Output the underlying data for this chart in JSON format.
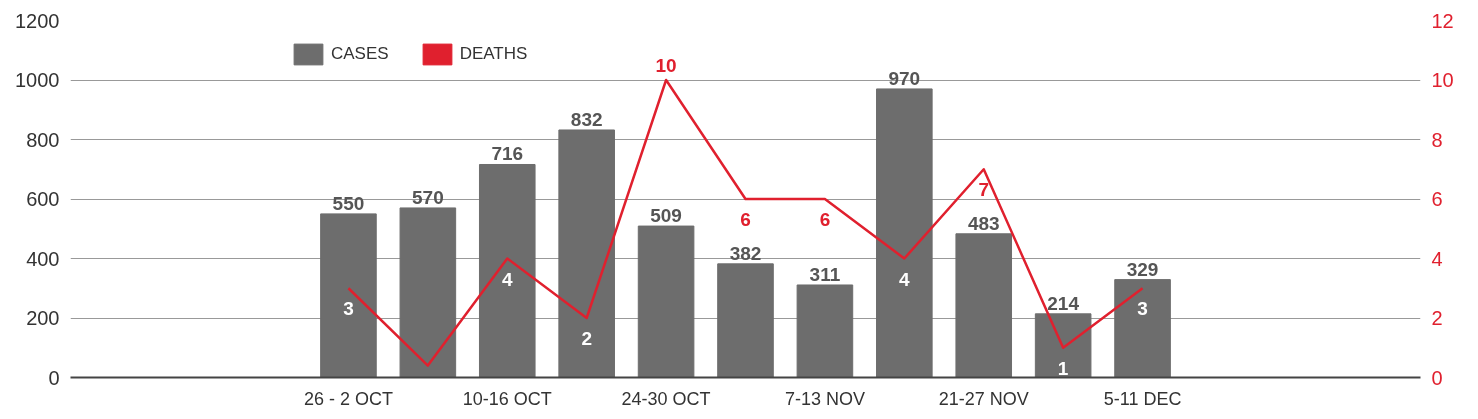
{
  "chart_data": {
    "type": "bar",
    "categories": [
      null,
      null,
      null,
      "26 - 2 OCT",
      null,
      "10-16 OCT",
      null,
      "24-30 OCT",
      null,
      "7-13 NOV",
      null,
      "21-27 NOV",
      null,
      "5-11 DEC",
      null,
      null,
      null
    ],
    "series": [
      {
        "name": "CASES",
        "color": "#6d6d6d",
        "values": [
          null,
          null,
          null,
          550,
          570,
          716,
          832,
          509,
          382,
          311,
          970,
          483,
          214,
          329,
          null,
          null,
          null
        ],
        "value_labels": [
          null,
          null,
          null,
          "550",
          "570",
          "716",
          "832",
          "509",
          "382",
          "311",
          "970",
          "483",
          "214",
          "329",
          null,
          null,
          null
        ]
      },
      {
        "name": "DEATHS",
        "type": "line",
        "axis": "y2",
        "color": "#e0202e",
        "values": [
          null,
          null,
          null,
          3,
          0.4,
          4,
          2,
          10,
          6,
          6,
          4,
          7,
          1,
          3,
          null,
          null,
          null
        ],
        "value_labels": [
          null,
          null,
          null,
          "3",
          null,
          "4",
          "2",
          "10",
          "6",
          "6",
          "4",
          "7",
          "1",
          "3",
          null,
          null,
          null
        ]
      }
    ],
    "ylim": [
      0,
      1200
    ],
    "yticks": [
      0,
      200,
      400,
      600,
      800,
      1000,
      1200
    ],
    "y2lim": [
      0,
      12
    ],
    "y2ticks": [
      0,
      2,
      4,
      6,
      8,
      10,
      12
    ],
    "grid": "y",
    "legend": "top left",
    "marker": "none",
    "line_style": "solid"
  }
}
